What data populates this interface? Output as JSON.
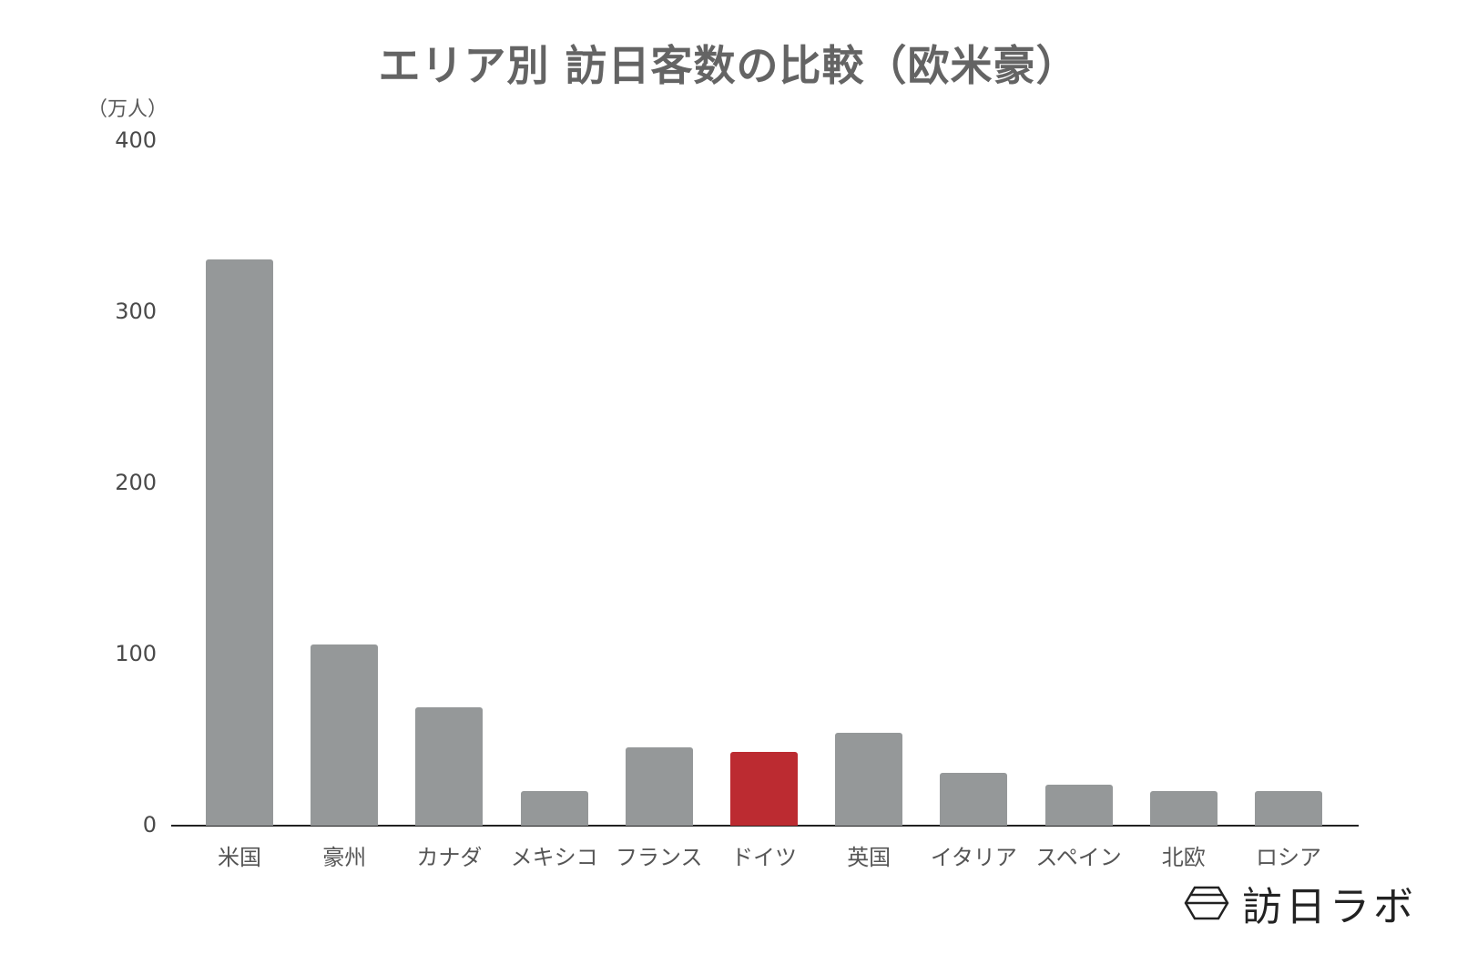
{
  "chart_data": {
    "type": "bar",
    "title": "エリア別 訪日客数の比較（欧米豪）",
    "xlabel": "",
    "ylabel": "（万人）",
    "ylim": [
      0,
      400
    ],
    "yticks": [
      0,
      100,
      200,
      300,
      400
    ],
    "grid": false,
    "legend": null,
    "categories": [
      "米国",
      "豪州",
      "カナダ",
      "メキシコ",
      "フランス",
      "ドイツ",
      "英国",
      "イタリア",
      "スペイン",
      "北欧",
      "ロシア"
    ],
    "values": [
      331,
      106,
      69,
      20,
      46,
      43,
      54,
      31,
      24,
      20,
      20
    ],
    "highlight_category": "ドイツ",
    "colors": {
      "default_bar": "#959899",
      "highlight_bar": "#bc2b31",
      "axis": "#222222"
    }
  },
  "header": {
    "title": "エリア別 訪日客数の比較（欧米豪）"
  },
  "yaxis": {
    "unit": "（万人）",
    "ticks": [
      {
        "label": "400",
        "value": 400
      },
      {
        "label": "300",
        "value": 300
      },
      {
        "label": "200",
        "value": 200
      },
      {
        "label": "100",
        "value": 100
      },
      {
        "label": "0",
        "value": 0
      }
    ]
  },
  "logo": {
    "text": "訪日ラボ",
    "icon": "hexagon-logo-icon"
  }
}
